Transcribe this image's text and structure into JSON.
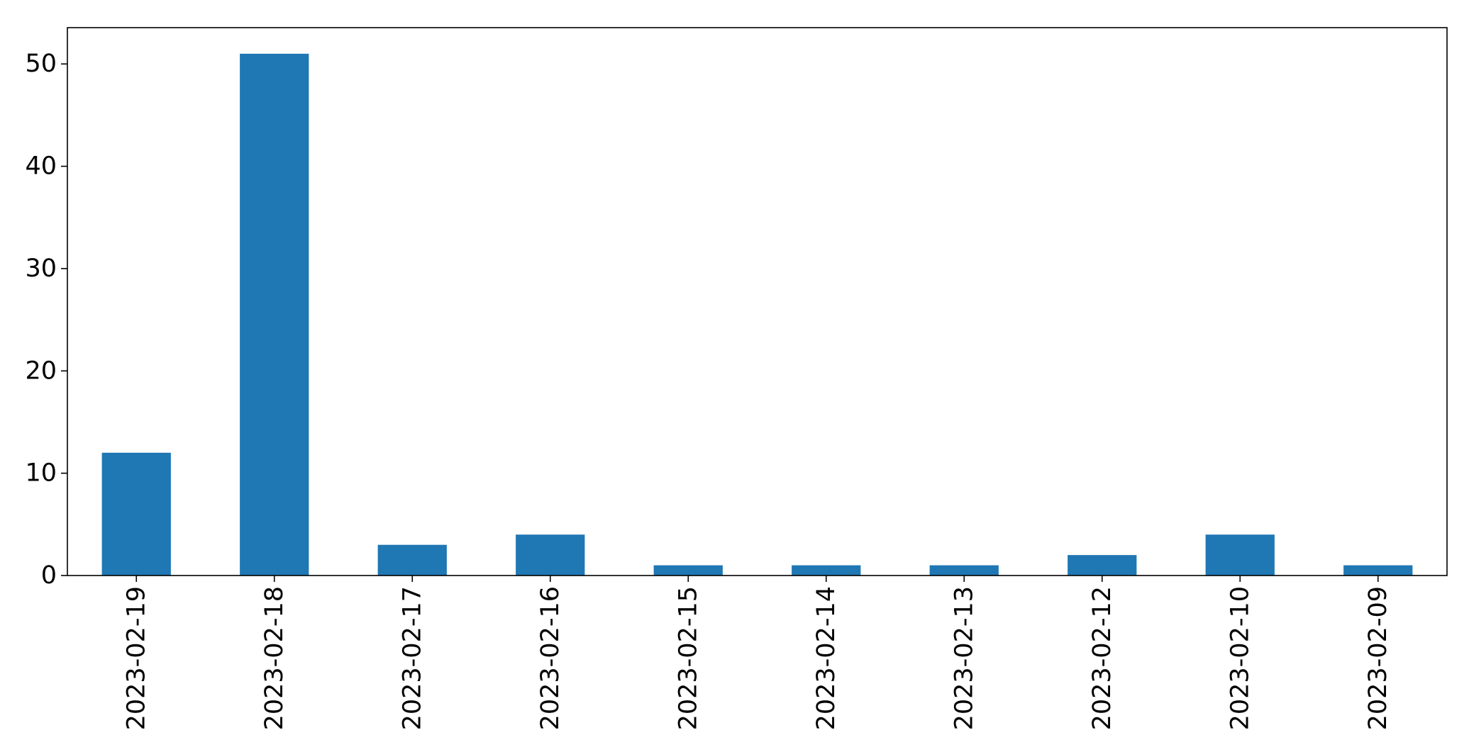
{
  "chart_data": {
    "type": "bar",
    "categories": [
      "2023-02-19",
      "2023-02-18",
      "2023-02-17",
      "2023-02-16",
      "2023-02-15",
      "2023-02-14",
      "2023-02-13",
      "2023-02-12",
      "2023-02-10",
      "2023-02-09"
    ],
    "values": [
      12,
      51,
      3,
      4,
      1,
      1,
      1,
      2,
      4,
      1
    ],
    "title": "",
    "xlabel": "",
    "ylabel": "",
    "ylim": [
      0,
      53.55
    ],
    "yticks": [
      0,
      10,
      20,
      30,
      40,
      50
    ],
    "grid": false,
    "legend": "none",
    "bar_color": "#1f77b4",
    "axis_color": "#000000"
  }
}
